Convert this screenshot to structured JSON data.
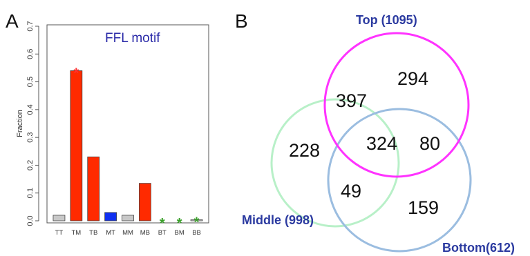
{
  "panels": {
    "a_letter": "A",
    "b_letter": "B"
  },
  "chart_data": [
    {
      "type": "bar",
      "panel": "A",
      "title": "FFL motif",
      "ylabel": "Fraction",
      "ylim": [
        0,
        0.7
      ],
      "yticks": [
        "0.0",
        "0.1",
        "0.2",
        "0.3",
        "0.4",
        "0.5",
        "0.6",
        "0.7"
      ],
      "categories": [
        "TT",
        "TM",
        "TB",
        "MT",
        "MM",
        "MB",
        "BT",
        "BM",
        "BB"
      ],
      "values": [
        0.02,
        0.54,
        0.23,
        0.03,
        0.02,
        0.135,
        0.0,
        0.0,
        0.004
      ],
      "bar_colors": [
        "#c8c8c8",
        "#ff2a00",
        "#ff2a00",
        "#1030f0",
        "#c8c8c8",
        "#ff2a00",
        "#c8c8c8",
        "#c8c8c8",
        "#c8c8c8"
      ],
      "annotations": [
        {
          "category": "TM",
          "text": "*",
          "color": "#ff3030"
        },
        {
          "category": "BT",
          "text": "*",
          "color": "#3aa02a"
        },
        {
          "category": "BM",
          "text": "*",
          "color": "#3aa02a"
        },
        {
          "category": "BB",
          "text": "*",
          "color": "#3aa02a"
        }
      ],
      "grid": false,
      "legend": "none"
    },
    {
      "type": "venn",
      "panel": "B",
      "sets": [
        {
          "name": "Top (1095)",
          "color": "#ff33ff"
        },
        {
          "name": "Middle (998)",
          "color": "#b8f0c8"
        },
        {
          "name": "Bottom(612)",
          "color": "#9bbde0"
        }
      ],
      "regions": {
        "top_only": 294,
        "middle_only": 228,
        "bottom_only": 159,
        "top_middle": 397,
        "top_bottom": 80,
        "middle_bottom": 49,
        "all_three": 324
      }
    }
  ]
}
